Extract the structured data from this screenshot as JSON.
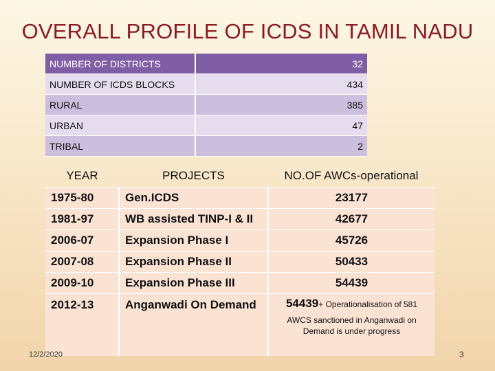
{
  "title": "OVERALL PROFILE OF ICDS IN TAMIL NADU",
  "summary": [
    {
      "label": "NUMBER OF DISTRICTS",
      "value": "32"
    },
    {
      "label": "NUMBER OF ICDS BLOCKS",
      "value": "434"
    },
    {
      "label": "RURAL",
      "value": "385"
    },
    {
      "label": "URBAN",
      "value": "47"
    },
    {
      "label": "TRIBAL",
      "value": "2"
    }
  ],
  "projects": {
    "headers": {
      "year": "YEAR",
      "projects": "PROJECTS",
      "awcs": "NO.OF AWCs-operational"
    },
    "rows": [
      {
        "year": "1975-80",
        "project": "Gen.ICDS",
        "awcs": "23177"
      },
      {
        "year": "1981-97",
        "project": "WB assisted TINP-I & II",
        "awcs": "42677"
      },
      {
        "year": "2006-07",
        "project": "Expansion Phase I",
        "awcs": "45726"
      },
      {
        "year": "2007-08",
        "project": "Expansion Phase II",
        "awcs": "50433"
      },
      {
        "year": "2009-10",
        "project": "Expansion Phase III",
        "awcs": "54439"
      }
    ],
    "last_row": {
      "year": "2012-13",
      "project": "Anganwadi On Demand",
      "awcs": "54439",
      "awcs_suffix": "+ Operationalisation of 581",
      "awcs_note": "AWCS sanctioned in Anganwadi on Demand  is under progress"
    }
  },
  "footer": {
    "date": "12/2/2020",
    "page": "3"
  },
  "colors": {
    "title": "#8b1a22",
    "header_purple": "#7f5ea6",
    "row_peach": "#fbe3d4"
  }
}
